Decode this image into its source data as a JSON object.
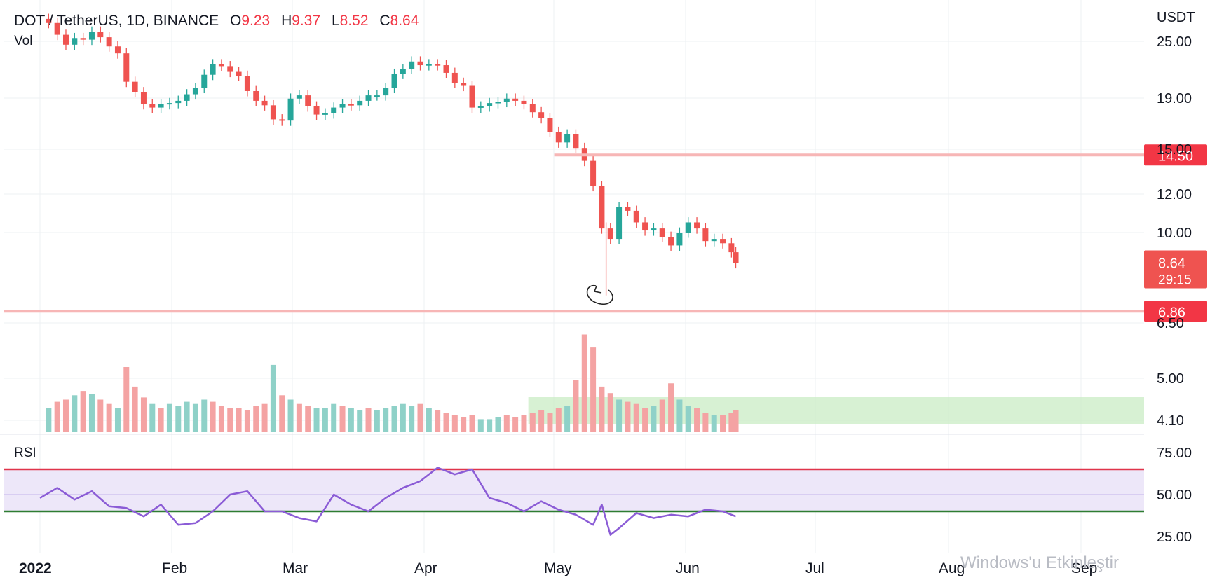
{
  "header": {
    "symbol": "DOT / TetherUS, 1D, BINANCE",
    "open_label": "O",
    "open": "9.23",
    "high_label": "H",
    "high": "9.37",
    "low_label": "L",
    "low": "8.52",
    "close_label": "C",
    "close": "8.64",
    "volume_label": "Vol",
    "currency": "USDT"
  },
  "rsi_label": "RSI",
  "watermark": "Windows'u Etkinleştir",
  "colors": {
    "up": "#26a69a",
    "down": "#ef5350",
    "vol_up": "#8fd1c8",
    "vol_down": "#f4a3a3",
    "hline": "#f7b6b6",
    "badge": "#f23645",
    "rsi_line": "#8b5cd6",
    "rsi_band": "#ede7f9",
    "rsi_upper": "#e0344b",
    "rsi_lower": "#2e7d32",
    "zone": "#c9ecc4",
    "grid": "#eef0f3"
  },
  "chart_data": [
    {
      "type": "candlestick",
      "title": "DOT / TetherUS, 1D, BINANCE",
      "y_scale": "log",
      "price_ticks": [
        "25.00",
        "19.00",
        "15.00",
        "12.00",
        "10.00",
        "6.50",
        "5.00",
        "4.10"
      ],
      "x_ticks": [
        "2022",
        "Feb",
        "Mar",
        "Apr",
        "May",
        "Jun",
        "Jul",
        "Aug",
        "Sep"
      ],
      "horizontal_lines": [
        {
          "price": 14.5,
          "label": "14.50"
        },
        {
          "price": 6.86,
          "label": "6.86"
        }
      ],
      "last_price": {
        "price": 8.64,
        "label": "8.64",
        "countdown": "29:15"
      },
      "volume_zone": {
        "from": "2022-04-24",
        "to": "2022-09-30"
      },
      "points": [
        [
          "2022-01-03",
          27.3
        ],
        [
          "2022-01-05",
          25.8
        ],
        [
          "2022-01-07",
          24.6
        ],
        [
          "2022-01-09",
          25.4
        ],
        [
          "2022-01-11",
          25.2
        ],
        [
          "2022-01-13",
          26.2
        ],
        [
          "2022-01-15",
          25.5
        ],
        [
          "2022-01-17",
          24.4
        ],
        [
          "2022-01-19",
          23.6
        ],
        [
          "2022-01-21",
          20.6
        ],
        [
          "2022-01-23",
          19.6
        ],
        [
          "2022-01-25",
          18.5
        ],
        [
          "2022-01-27",
          18.2
        ],
        [
          "2022-01-29",
          18.5
        ],
        [
          "2022-01-31",
          18.6
        ],
        [
          "2022-02-02",
          18.8
        ],
        [
          "2022-02-04",
          19.4
        ],
        [
          "2022-02-06",
          20.0
        ],
        [
          "2022-02-08",
          21.3
        ],
        [
          "2022-02-10",
          22.4
        ],
        [
          "2022-02-12",
          22.2
        ],
        [
          "2022-02-14",
          21.6
        ],
        [
          "2022-02-16",
          21.2
        ],
        [
          "2022-02-18",
          19.7
        ],
        [
          "2022-02-20",
          18.8
        ],
        [
          "2022-02-22",
          18.4
        ],
        [
          "2022-02-24",
          17.2
        ],
        [
          "2022-02-26",
          17.1
        ],
        [
          "2022-02-28",
          19.0
        ],
        [
          "2022-03-02",
          19.3
        ],
        [
          "2022-03-04",
          18.3
        ],
        [
          "2022-03-06",
          17.6
        ],
        [
          "2022-03-08",
          17.7
        ],
        [
          "2022-03-10",
          18.2
        ],
        [
          "2022-03-12",
          18.5
        ],
        [
          "2022-03-14",
          18.4
        ],
        [
          "2022-03-16",
          18.8
        ],
        [
          "2022-03-18",
          19.3
        ],
        [
          "2022-03-20",
          19.3
        ],
        [
          "2022-03-22",
          20.0
        ],
        [
          "2022-03-24",
          21.4
        ],
        [
          "2022-03-26",
          21.9
        ],
        [
          "2022-03-28",
          22.7
        ],
        [
          "2022-03-30",
          22.3
        ],
        [
          "2022-04-01",
          22.4
        ],
        [
          "2022-04-03",
          22.3
        ],
        [
          "2022-04-05",
          21.5
        ],
        [
          "2022-04-07",
          20.5
        ],
        [
          "2022-04-09",
          20.2
        ],
        [
          "2022-04-11",
          18.2
        ],
        [
          "2022-04-13",
          18.3
        ],
        [
          "2022-04-15",
          18.6
        ],
        [
          "2022-04-17",
          18.7
        ],
        [
          "2022-04-19",
          19.0
        ],
        [
          "2022-04-21",
          18.8
        ],
        [
          "2022-04-23",
          18.5
        ],
        [
          "2022-04-25",
          17.8
        ],
        [
          "2022-04-27",
          17.3
        ],
        [
          "2022-04-29",
          16.2
        ],
        [
          "2022-05-01",
          15.4
        ],
        [
          "2022-05-03",
          16.0
        ],
        [
          "2022-05-05",
          15.0
        ],
        [
          "2022-05-07",
          14.1
        ],
        [
          "2022-05-09",
          12.5
        ],
        [
          "2022-05-11",
          10.2
        ],
        [
          "2022-05-13",
          9.7
        ],
        [
          "2022-05-15",
          11.3
        ],
        [
          "2022-05-17",
          11.1
        ],
        [
          "2022-05-19",
          10.5
        ],
        [
          "2022-05-21",
          10.1
        ],
        [
          "2022-05-23",
          10.2
        ],
        [
          "2022-05-25",
          9.8
        ],
        [
          "2022-05-27",
          9.4
        ],
        [
          "2022-05-29",
          10.0
        ],
        [
          "2022-05-31",
          10.5
        ],
        [
          "2022-06-02",
          10.2
        ],
        [
          "2022-06-04",
          9.6
        ],
        [
          "2022-06-06",
          9.7
        ],
        [
          "2022-06-08",
          9.5
        ],
        [
          "2022-06-10",
          9.1
        ],
        [
          "2022-06-11",
          8.64
        ]
      ]
    },
    {
      "type": "bar",
      "title": "Vol",
      "dates": [
        "2022-01-03",
        "2022-01-05",
        "2022-01-07",
        "2022-01-09",
        "2022-01-11",
        "2022-01-13",
        "2022-01-15",
        "2022-01-17",
        "2022-01-19",
        "2022-01-21",
        "2022-01-23",
        "2022-01-25",
        "2022-01-27",
        "2022-01-29",
        "2022-01-31",
        "2022-02-02",
        "2022-02-04",
        "2022-02-06",
        "2022-02-08",
        "2022-02-10",
        "2022-02-12",
        "2022-02-14",
        "2022-02-16",
        "2022-02-18",
        "2022-02-20",
        "2022-02-22",
        "2022-02-24",
        "2022-02-26",
        "2022-02-28",
        "2022-03-02",
        "2022-03-04",
        "2022-03-06",
        "2022-03-08",
        "2022-03-10",
        "2022-03-12",
        "2022-03-14",
        "2022-03-16",
        "2022-03-18",
        "2022-03-20",
        "2022-03-22",
        "2022-03-24",
        "2022-03-26",
        "2022-03-28",
        "2022-03-30",
        "2022-04-01",
        "2022-04-03",
        "2022-04-05",
        "2022-04-07",
        "2022-04-09",
        "2022-04-11",
        "2022-04-13",
        "2022-04-15",
        "2022-04-17",
        "2022-04-19",
        "2022-04-21",
        "2022-04-23",
        "2022-04-25",
        "2022-04-27",
        "2022-04-29",
        "2022-05-01",
        "2022-05-03",
        "2022-05-05",
        "2022-05-07",
        "2022-05-09",
        "2022-05-11",
        "2022-05-13",
        "2022-05-15",
        "2022-05-17",
        "2022-05-19",
        "2022-05-21",
        "2022-05-23",
        "2022-05-25",
        "2022-05-27",
        "2022-05-29",
        "2022-05-31",
        "2022-06-02",
        "2022-06-04",
        "2022-06-06",
        "2022-06-08",
        "2022-06-10",
        "2022-06-11"
      ],
      "values": [
        0.22,
        0.28,
        0.3,
        0.34,
        0.38,
        0.35,
        0.3,
        0.26,
        0.22,
        0.6,
        0.42,
        0.32,
        0.26,
        0.22,
        0.26,
        0.24,
        0.28,
        0.26,
        0.3,
        0.28,
        0.24,
        0.22,
        0.22,
        0.2,
        0.24,
        0.26,
        0.62,
        0.34,
        0.3,
        0.26,
        0.24,
        0.22,
        0.22,
        0.26,
        0.24,
        0.22,
        0.2,
        0.22,
        0.2,
        0.22,
        0.24,
        0.26,
        0.24,
        0.26,
        0.22,
        0.2,
        0.18,
        0.16,
        0.14,
        0.16,
        0.12,
        0.12,
        0.14,
        0.16,
        0.14,
        0.16,
        0.18,
        0.2,
        0.18,
        0.22,
        0.24,
        0.48,
        0.9,
        0.78,
        0.42,
        0.36,
        0.3,
        0.28,
        0.26,
        0.22,
        0.24,
        0.3,
        0.45,
        0.3,
        0.24,
        0.22,
        0.18,
        0.16,
        0.16,
        0.18,
        0.2
      ],
      "up": [
        true,
        false,
        false,
        true,
        false,
        true,
        false,
        false,
        true,
        false,
        false,
        false,
        true,
        false,
        true,
        true,
        true,
        true,
        true,
        false,
        false,
        false,
        false,
        false,
        false,
        false,
        true,
        false,
        true,
        false,
        false,
        true,
        true,
        true,
        false,
        true,
        true,
        false,
        true,
        true,
        true,
        true,
        true,
        false,
        true,
        false,
        false,
        false,
        false,
        false,
        true,
        true,
        true,
        false,
        false,
        false,
        false,
        false,
        false,
        false,
        true,
        false,
        false,
        false,
        false,
        false,
        true,
        false,
        false,
        false,
        true,
        false,
        false,
        true,
        true,
        false,
        false,
        true,
        false,
        false,
        false
      ]
    },
    {
      "type": "line",
      "title": "RSI",
      "y_ticks": [
        "75.00",
        "50.00",
        "25.00"
      ],
      "ylim": [
        20,
        80
      ],
      "bands": {
        "upper": 65,
        "middle": 50,
        "lower": 40
      },
      "series": [
        {
          "name": "RSI",
          "x": [
            "2022-01-01",
            "2022-01-05",
            "2022-01-09",
            "2022-01-13",
            "2022-01-17",
            "2022-01-21",
            "2022-01-25",
            "2022-01-29",
            "2022-02-02",
            "2022-02-06",
            "2022-02-10",
            "2022-02-14",
            "2022-02-18",
            "2022-02-22",
            "2022-02-26",
            "2022-03-02",
            "2022-03-06",
            "2022-03-10",
            "2022-03-14",
            "2022-03-18",
            "2022-03-22",
            "2022-03-26",
            "2022-03-30",
            "2022-04-03",
            "2022-04-07",
            "2022-04-11",
            "2022-04-15",
            "2022-04-19",
            "2022-04-23",
            "2022-04-27",
            "2022-05-01",
            "2022-05-05",
            "2022-05-09",
            "2022-05-11",
            "2022-05-13",
            "2022-05-15",
            "2022-05-19",
            "2022-05-23",
            "2022-05-27",
            "2022-05-31",
            "2022-06-04",
            "2022-06-08",
            "2022-06-11"
          ],
          "values": [
            48,
            54,
            47,
            52,
            43,
            42,
            37,
            44,
            32,
            33,
            40,
            50,
            52,
            40,
            40,
            36,
            34,
            50,
            44,
            40,
            48,
            54,
            58,
            66,
            62,
            65,
            48,
            45,
            40,
            46,
            41,
            38,
            32,
            44,
            26,
            30,
            39,
            36,
            38,
            37,
            41,
            40,
            37
          ]
        }
      ]
    }
  ]
}
